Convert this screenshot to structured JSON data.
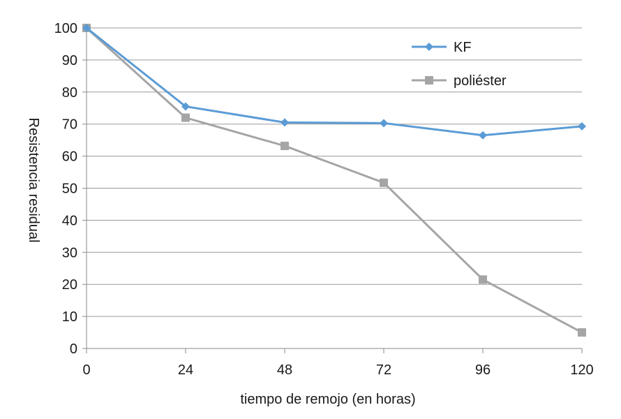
{
  "chart_data": {
    "type": "line",
    "title": "",
    "xlabel": "tiempo de remojo (en horas)",
    "ylabel": "Resistencia residual",
    "x": [
      0,
      24,
      48,
      72,
      96,
      120
    ],
    "xlim": [
      0,
      120
    ],
    "ylim": [
      0,
      100
    ],
    "yticks": [
      0,
      10,
      20,
      30,
      40,
      50,
      60,
      70,
      80,
      90,
      100
    ],
    "xticks": [
      0,
      24,
      48,
      72,
      96,
      120
    ],
    "grid": "horizontal",
    "legend_position": "top-right",
    "series": [
      {
        "name": "KF",
        "color": "#5b9bd5",
        "marker": "diamond",
        "values": [
          100,
          75.5,
          70.5,
          70.3,
          66.5,
          69.3
        ]
      },
      {
        "name": "poliéster",
        "color": "#a5a5a5",
        "marker": "square",
        "values": [
          100,
          72,
          63.2,
          51.7,
          21.5,
          5
        ]
      }
    ]
  }
}
